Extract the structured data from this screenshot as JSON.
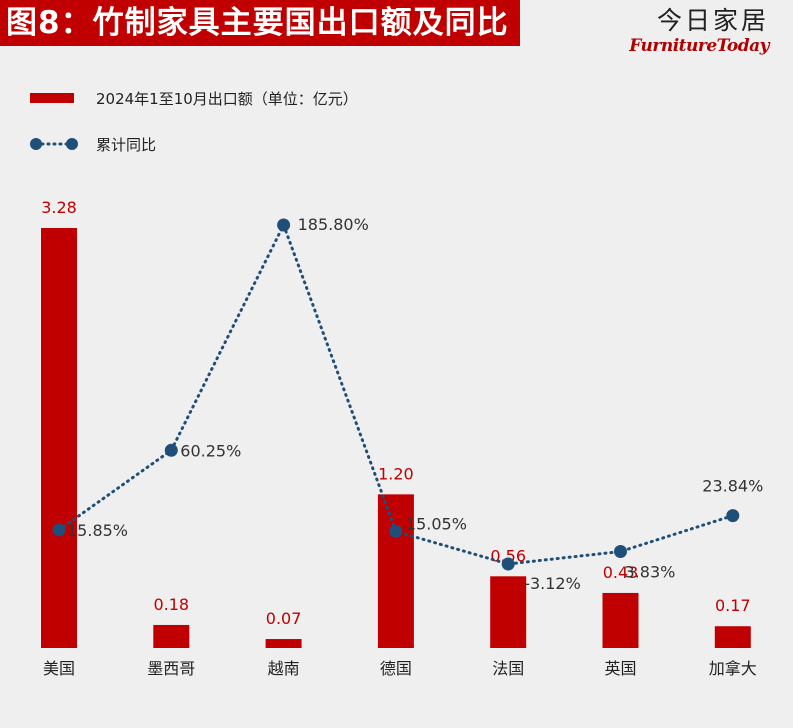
{
  "header": {
    "title": "图8：竹制家具主要国出口额及同比",
    "brand_cn": "今日家居",
    "brand_en": "FurnitureToday"
  },
  "colors": {
    "bar": "#c00000",
    "line": "#1f4e79",
    "background": "#efefef"
  },
  "chart_data": {
    "type": "bar",
    "title": "图8：竹制家具主要国出口额及同比",
    "categories": [
      "美国",
      "墨西哥",
      "越南",
      "德国",
      "法国",
      "英国",
      "加拿大"
    ],
    "series": [
      {
        "name": "2024年1至10月出口额（单位：亿元）",
        "kind": "bar",
        "values": [
          3.28,
          0.18,
          0.07,
          1.2,
          0.56,
          0.43,
          0.17
        ],
        "labels": [
          "3.28",
          "0.18",
          "0.07",
          "1.20",
          "0.56",
          "0.43",
          "0.17"
        ]
      },
      {
        "name": "累计同比",
        "kind": "line",
        "values": [
          15.85,
          60.25,
          185.8,
          15.05,
          -3.12,
          3.83,
          23.84
        ],
        "labels": [
          "15.85%",
          "60.25%",
          "185.80%",
          "15.05%",
          "-3.12%",
          "3.83%",
          "23.84%"
        ]
      }
    ],
    "bar_ylim": [
      0,
      3.28
    ],
    "line_ylim": [
      -3.12,
      185.8
    ],
    "legend_position": "top-left",
    "grid": false
  }
}
